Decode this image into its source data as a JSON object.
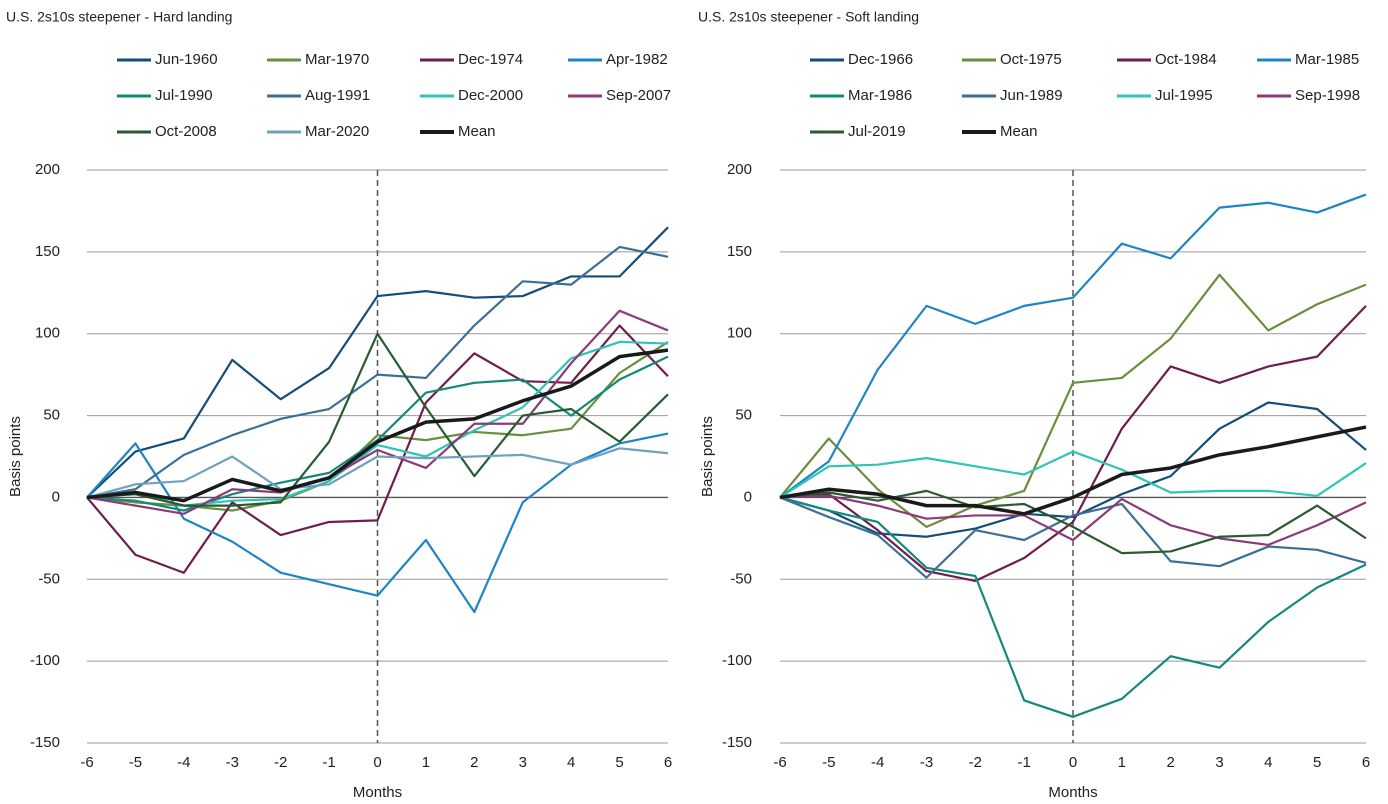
{
  "chart_data": [
    {
      "type": "line",
      "title": "U.S. 2s10s steepener - Hard landing",
      "xlabel": "Months",
      "ylabel": "Basis points",
      "x": [
        -6,
        -5,
        -4,
        -3,
        -2,
        -1,
        0,
        1,
        2,
        3,
        4,
        5,
        6
      ],
      "xlim": [
        -6,
        6
      ],
      "xticks": [
        -6,
        -5,
        -4,
        -3,
        -2,
        -1,
        0,
        1,
        2,
        3,
        4,
        5,
        6
      ],
      "ylim": [
        -150,
        200
      ],
      "yticks": [
        -150,
        -100,
        -50,
        0,
        50,
        100,
        150,
        200
      ],
      "grid": true,
      "vline": 0,
      "series": [
        {
          "name": "Jun-1960",
          "color": "#124e78",
          "values": [
            0,
            28,
            36,
            84,
            60,
            79,
            123,
            126,
            122,
            123,
            135,
            135,
            165
          ]
        },
        {
          "name": "Mar-1970",
          "color": "#6b8e3c",
          "values": [
            0,
            -3,
            -5,
            -8,
            -2,
            10,
            38,
            35,
            40,
            38,
            42,
            76,
            95
          ]
        },
        {
          "name": "Dec-1974",
          "color": "#6e1d4e",
          "values": [
            0,
            -35,
            -46,
            -3,
            -23,
            -15,
            -14,
            58,
            88,
            71,
            70,
            105,
            74
          ]
        },
        {
          "name": "Apr-1982",
          "color": "#1f85c2",
          "values": [
            0,
            33,
            -13,
            -27,
            -46,
            -53,
            -60,
            -26,
            -70,
            -3,
            20,
            33,
            39
          ]
        },
        {
          "name": "Jul-1990",
          "color": "#14897a",
          "values": [
            0,
            -2,
            -8,
            2,
            9,
            15,
            35,
            64,
            70,
            72,
            50,
            72,
            86
          ]
        },
        {
          "name": "Aug-1991",
          "color": "#3d6f96",
          "values": [
            0,
            5,
            26,
            38,
            48,
            54,
            75,
            73,
            105,
            132,
            130,
            153,
            147
          ]
        },
        {
          "name": "Dec-2000",
          "color": "#2ec4b6",
          "values": [
            0,
            3,
            -5,
            -2,
            -1,
            10,
            32,
            25,
            41,
            55,
            85,
            95,
            94
          ]
        },
        {
          "name": "Sep-2007",
          "color": "#8b3a7a",
          "values": [
            0,
            -5,
            -10,
            5,
            3,
            12,
            29,
            18,
            45,
            45,
            82,
            114,
            102
          ]
        },
        {
          "name": "Oct-2008",
          "color": "#2a5a32",
          "values": [
            0,
            2,
            -5,
            -5,
            -3,
            34,
            100,
            55,
            13,
            50,
            54,
            34,
            63
          ]
        },
        {
          "name": "Mar-2020",
          "color": "#6fa0bd",
          "values": [
            0,
            8,
            10,
            25,
            5,
            8,
            25,
            24,
            25,
            26,
            20,
            30,
            27
          ]
        },
        {
          "name": "Mean",
          "color": "#1a1a1a",
          "values": [
            0,
            3,
            -2,
            11,
            4,
            12,
            34,
            46,
            48,
            59,
            68,
            86,
            90
          ]
        }
      ]
    },
    {
      "type": "line",
      "title": "U.S. 2s10s steepener - Soft landing",
      "xlabel": "Months",
      "ylabel": "Basis points",
      "x": [
        -6,
        -5,
        -4,
        -3,
        -2,
        -1,
        0,
        1,
        2,
        3,
        4,
        5,
        6
      ],
      "xlim": [
        -6,
        6
      ],
      "xticks": [
        -6,
        -5,
        -4,
        -3,
        -2,
        -1,
        0,
        1,
        2,
        3,
        4,
        5,
        6
      ],
      "ylim": [
        -150,
        200
      ],
      "yticks": [
        -150,
        -100,
        -50,
        0,
        50,
        100,
        150,
        200
      ],
      "grid": true,
      "vline": 0,
      "series": [
        {
          "name": "Dec-1966",
          "color": "#124e78",
          "values": [
            0,
            -8,
            -22,
            -24,
            -19,
            -10,
            -12,
            2,
            13,
            42,
            58,
            54,
            29
          ]
        },
        {
          "name": "Oct-1975",
          "color": "#6b8e3c",
          "values": [
            0,
            36,
            5,
            -18,
            -5,
            4,
            70,
            73,
            97,
            136,
            102,
            118,
            130
          ]
        },
        {
          "name": "Oct-1984",
          "color": "#6e1d4e",
          "values": [
            0,
            2,
            -20,
            -45,
            -51,
            -37,
            -15,
            42,
            80,
            70,
            80,
            86,
            117
          ]
        },
        {
          "name": "Mar-1985",
          "color": "#1f85c2",
          "values": [
            0,
            22,
            78,
            117,
            106,
            117,
            122,
            155,
            146,
            177,
            180,
            174,
            185
          ]
        },
        {
          "name": "Mar-1986",
          "color": "#14897a",
          "values": [
            0,
            -8,
            -15,
            -43,
            -48,
            -124,
            -134,
            -123,
            -97,
            -104,
            -76,
            -55,
            -41
          ]
        },
        {
          "name": "Jun-1989",
          "color": "#3d6f96",
          "values": [
            0,
            -12,
            -23,
            -49,
            -20,
            -26,
            -11,
            -4,
            -39,
            -42,
            -30,
            -32,
            -40
          ]
        },
        {
          "name": "Jul-1995",
          "color": "#2ec4b6",
          "values": [
            0,
            19,
            20,
            24,
            19,
            14,
            28,
            17,
            3,
            4,
            4,
            1,
            21
          ]
        },
        {
          "name": "Sep-1998",
          "color": "#8b3a7a",
          "values": [
            0,
            1,
            -5,
            -13,
            -11,
            -11,
            -26,
            -1,
            -17,
            -25,
            -29,
            -17,
            -3
          ]
        },
        {
          "name": "Jul-2019",
          "color": "#2a5a32",
          "values": [
            0,
            3,
            -2,
            4,
            -6,
            -4,
            -18,
            -34,
            -33,
            -24,
            -23,
            -5,
            -25
          ]
        },
        {
          "name": "Mean",
          "color": "#1a1a1a",
          "values": [
            0,
            5,
            2,
            -5,
            -5,
            -10,
            0,
            14,
            18,
            26,
            31,
            37,
            43
          ]
        }
      ]
    }
  ]
}
